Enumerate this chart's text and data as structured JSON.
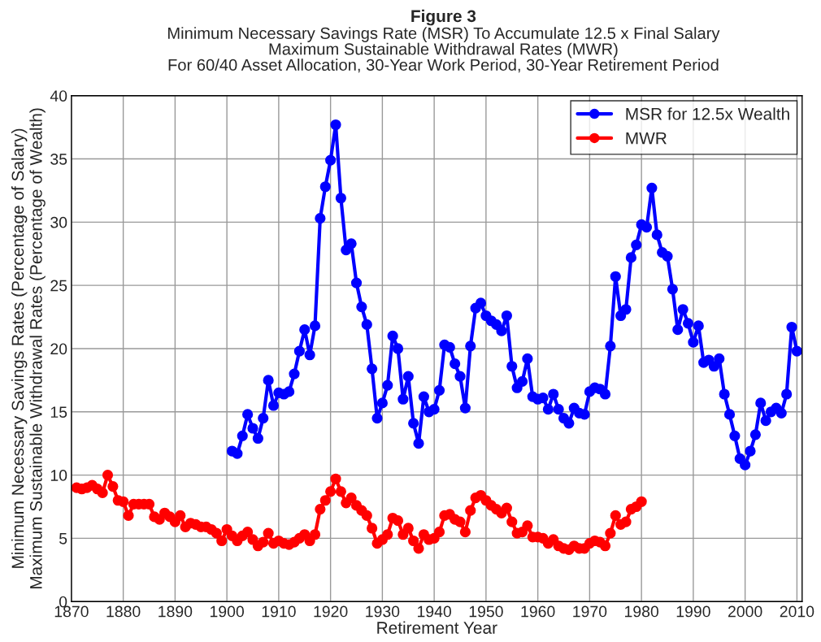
{
  "chart_data": {
    "type": "line",
    "title": "Figure 3",
    "subtitle": "Minimum Necessary Savings Rate (MSR) To Accumulate 12.5 x Final Salary\nMaximum Sustainable Withdrawal Rates (MWR)\nFor 60/40 Asset Allocation, 30-Year Work Period, 30-Year Retirement Period",
    "xlabel": "Retirement Year",
    "ylabel": "Minimum Necessary Savings Rates (Percentage of Salary)\nMaximum Sustainable Withdrawal Rates (Percentage of Wealth)",
    "xlim": [
      1870,
      2011
    ],
    "xticks": [
      1870,
      1880,
      1890,
      1900,
      1910,
      1920,
      1930,
      1940,
      1950,
      1960,
      1970,
      1980,
      1990,
      2000,
      2010
    ],
    "ylim": [
      0,
      40
    ],
    "yticks": [
      0,
      5,
      10,
      15,
      20,
      25,
      30,
      35,
      40
    ],
    "grid": true,
    "legend": "top right",
    "marker": "circle",
    "line_style": "solid",
    "series": [
      {
        "name": "MSR for 12.5x Wealth",
        "color": "#0000ff",
        "x": [
          1901,
          1902,
          1903,
          1904,
          1905,
          1906,
          1907,
          1908,
          1909,
          1910,
          1911,
          1912,
          1913,
          1914,
          1915,
          1916,
          1917,
          1918,
          1919,
          1920,
          1921,
          1922,
          1923,
          1924,
          1925,
          1926,
          1927,
          1928,
          1929,
          1930,
          1931,
          1932,
          1933,
          1934,
          1935,
          1936,
          1937,
          1938,
          1939,
          1940,
          1941,
          1942,
          1943,
          1944,
          1945,
          1946,
          1947,
          1948,
          1949,
          1950,
          1951,
          1952,
          1953,
          1954,
          1955,
          1956,
          1957,
          1958,
          1959,
          1960,
          1961,
          1962,
          1963,
          1964,
          1965,
          1966,
          1967,
          1968,
          1969,
          1970,
          1971,
          1972,
          1973,
          1974,
          1975,
          1976,
          1977,
          1978,
          1979,
          1980,
          1981,
          1982,
          1983,
          1984,
          1985,
          1986,
          1987,
          1988,
          1989,
          1990,
          1991,
          1992,
          1993,
          1994,
          1995,
          1996,
          1997,
          1998,
          1999,
          2000,
          2001,
          2002,
          2003,
          2004,
          2005,
          2006,
          2007,
          2008,
          2009,
          2010
        ],
        "values": [
          11.9,
          11.7,
          13.1,
          14.8,
          13.7,
          12.9,
          14.5,
          17.5,
          15.5,
          16.5,
          16.4,
          16.6,
          18.0,
          19.8,
          21.5,
          19.5,
          21.8,
          30.3,
          32.8,
          34.9,
          37.7,
          31.9,
          27.8,
          28.3,
          25.2,
          23.3,
          21.9,
          18.4,
          14.5,
          15.7,
          17.1,
          21.0,
          20.0,
          16.0,
          17.8,
          14.1,
          12.5,
          16.2,
          15.0,
          15.2,
          16.7,
          20.3,
          20.1,
          18.8,
          17.8,
          15.3,
          20.2,
          23.2,
          23.6,
          22.6,
          22.2,
          21.9,
          21.4,
          22.6,
          18.6,
          16.9,
          17.4,
          19.2,
          16.2,
          16.0,
          16.1,
          15.2,
          16.4,
          15.2,
          14.5,
          14.1,
          15.3,
          14.9,
          14.8,
          16.6,
          16.9,
          16.8,
          16.4,
          20.2,
          25.7,
          22.6,
          23.1,
          27.2,
          28.2,
          29.8,
          29.6,
          32.7,
          29.0,
          27.6,
          27.3,
          24.7,
          21.5,
          23.1,
          22.0,
          20.5,
          21.8,
          18.9,
          19.1,
          18.6,
          19.2,
          16.4,
          14.8,
          13.1,
          11.3,
          10.8,
          11.9,
          13.2,
          15.7,
          14.3,
          15.0,
          15.3,
          14.9,
          16.4,
          21.7,
          19.8
        ]
      },
      {
        "name": "MWR",
        "color": "#ff0000",
        "x": [
          1871,
          1872,
          1873,
          1874,
          1875,
          1876,
          1877,
          1878,
          1879,
          1880,
          1881,
          1882,
          1883,
          1884,
          1885,
          1886,
          1887,
          1888,
          1889,
          1890,
          1891,
          1892,
          1893,
          1894,
          1895,
          1896,
          1897,
          1898,
          1899,
          1900,
          1901,
          1902,
          1903,
          1904,
          1905,
          1906,
          1907,
          1908,
          1909,
          1910,
          1911,
          1912,
          1913,
          1914,
          1915,
          1916,
          1917,
          1918,
          1919,
          1920,
          1921,
          1922,
          1923,
          1924,
          1925,
          1926,
          1927,
          1928,
          1929,
          1930,
          1931,
          1932,
          1933,
          1934,
          1935,
          1936,
          1937,
          1938,
          1939,
          1940,
          1941,
          1942,
          1943,
          1944,
          1945,
          1946,
          1947,
          1948,
          1949,
          1950,
          1951,
          1952,
          1953,
          1954,
          1955,
          1956,
          1957,
          1958,
          1959,
          1960,
          1961,
          1962,
          1963,
          1964,
          1965,
          1966,
          1967,
          1968,
          1969,
          1970,
          1971,
          1972,
          1973,
          1974,
          1975,
          1976,
          1977,
          1978,
          1979,
          1980
        ],
        "values": [
          9.0,
          8.9,
          9.0,
          9.2,
          8.9,
          8.6,
          10.0,
          9.1,
          8.0,
          7.9,
          6.8,
          7.7,
          7.7,
          7.7,
          7.7,
          6.7,
          6.5,
          7.0,
          6.7,
          6.3,
          6.8,
          5.9,
          6.2,
          6.1,
          5.9,
          5.9,
          5.7,
          5.4,
          4.8,
          5.7,
          5.2,
          4.8,
          5.2,
          5.5,
          4.9,
          4.4,
          4.7,
          5.4,
          4.6,
          4.8,
          4.6,
          4.5,
          4.7,
          5.0,
          5.3,
          4.8,
          5.3,
          7.3,
          8.0,
          8.7,
          9.7,
          8.7,
          7.8,
          8.2,
          7.6,
          7.2,
          6.8,
          5.8,
          4.6,
          4.9,
          5.3,
          6.6,
          6.4,
          5.3,
          5.8,
          4.8,
          4.2,
          5.3,
          4.9,
          5.0,
          5.5,
          6.8,
          6.9,
          6.5,
          6.3,
          5.5,
          7.2,
          8.2,
          8.4,
          8.0,
          7.6,
          7.3,
          7.0,
          7.4,
          6.3,
          5.4,
          5.5,
          6.0,
          5.1,
          5.1,
          5.0,
          4.6,
          4.9,
          4.4,
          4.2,
          4.1,
          4.4,
          4.2,
          4.2,
          4.6,
          4.8,
          4.7,
          4.4,
          5.4,
          6.8,
          6.1,
          6.3,
          7.3,
          7.5,
          7.9
        ]
      }
    ]
  }
}
